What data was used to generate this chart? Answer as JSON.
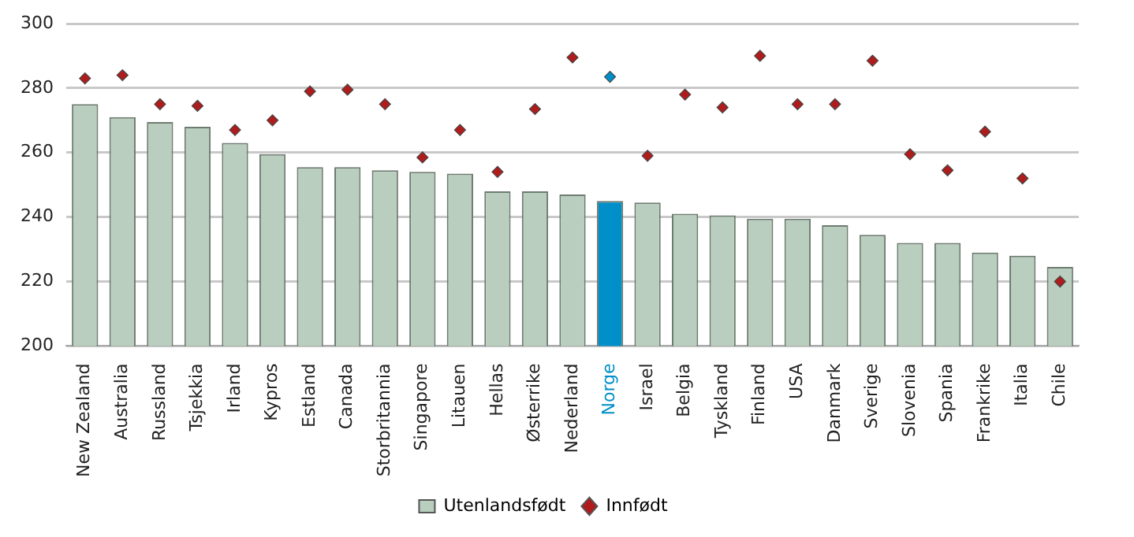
{
  "chart_data": {
    "type": "bar",
    "categories": [
      "New Zealand",
      "Australia",
      "Russland",
      "Tsjekkia",
      "Irland",
      "Kypros",
      "Estland",
      "Canada",
      "Storbritannia",
      "Singapore",
      "Litauen",
      "Hellas",
      "Østerrike",
      "Nederland",
      "Norge",
      "Israel",
      "Belgia",
      "Tyskland",
      "Finland",
      "USA",
      "Danmark",
      "Sverige",
      "Slovenia",
      "Spania",
      "Frankrike",
      "Italia",
      "Chile"
    ],
    "series": [
      {
        "name": "Utenlandsfødt",
        "color": "#b9cebe",
        "colors": [
          "#b9cebe",
          "#b9cebe",
          "#b9cebe",
          "#b9cebe",
          "#b9cebe",
          "#b9cebe",
          "#b9cebe",
          "#b9cebe",
          "#b9cebe",
          "#b9cebe",
          "#b9cebe",
          "#b9cebe",
          "#b9cebe",
          "#b9cebe",
          "#008fc8",
          "#b9cebe",
          "#b9cebe",
          "#b9cebe",
          "#b9cebe",
          "#b9cebe",
          "#b9cebe",
          "#b9cebe",
          "#b9cebe",
          "#b9cebe",
          "#b9cebe",
          "#b9cebe",
          "#b9cebe"
        ],
        "values": [
          275,
          271,
          269.5,
          268,
          263,
          259.5,
          255.5,
          255.5,
          254.5,
          254,
          253.5,
          248,
          248,
          247,
          245,
          244.5,
          241,
          240.5,
          239.5,
          239.5,
          237.5,
          234.5,
          232,
          232,
          229,
          228,
          224.5
        ]
      },
      {
        "name": "Innfødt",
        "type": "scatter",
        "marker": "diamond",
        "color": "#b01c1c",
        "colors": [
          "#b01c1c",
          "#b01c1c",
          "#b01c1c",
          "#b01c1c",
          "#b01c1c",
          "#b01c1c",
          "#b01c1c",
          "#b01c1c",
          "#b01c1c",
          "#b01c1c",
          "#b01c1c",
          "#b01c1c",
          "#b01c1c",
          "#b01c1c",
          "#008fc8",
          "#b01c1c",
          "#b01c1c",
          "#b01c1c",
          "#b01c1c",
          "#b01c1c",
          "#b01c1c",
          "#b01c1c",
          "#b01c1c",
          "#b01c1c",
          "#b01c1c",
          "#b01c1c",
          "#b01c1c"
        ],
        "values": [
          283,
          284,
          275,
          274.5,
          267,
          270,
          279,
          279.5,
          275,
          258.5,
          267,
          254,
          273.5,
          289.5,
          283.5,
          259,
          278,
          274,
          290,
          275,
          275,
          288.5,
          259.5,
          254.5,
          266.5,
          252,
          220
        ]
      }
    ],
    "ylim": [
      200,
      300
    ],
    "yticks": [
      200,
      220,
      240,
      260,
      280,
      300
    ],
    "grid": "y",
    "legend": "bottom"
  }
}
